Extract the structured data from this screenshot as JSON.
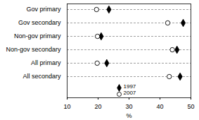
{
  "chart_data": {
    "type": "dot",
    "categories": [
      "Gov primary",
      "Gov secondary",
      "Non-gov primary",
      "Non-gov secondary",
      "All primary",
      "All secondary"
    ],
    "series": [
      {
        "name": "1997",
        "color": "#000000",
        "marker": "diamond",
        "values": [
          23.5,
          47.5,
          21,
          45.5,
          22.8,
          46.5
        ]
      },
      {
        "name": "2007",
        "color": "#000000",
        "marker": "open_circle",
        "values": [
          19.5,
          42.5,
          19.8,
          44,
          19.7,
          43
        ]
      }
    ],
    "xlabel": "%",
    "xlim": [
      10,
      50
    ],
    "xticks": [
      10,
      20,
      30,
      40,
      50
    ],
    "grid": true,
    "orientation": "horizontal",
    "legend": "bottom"
  }
}
